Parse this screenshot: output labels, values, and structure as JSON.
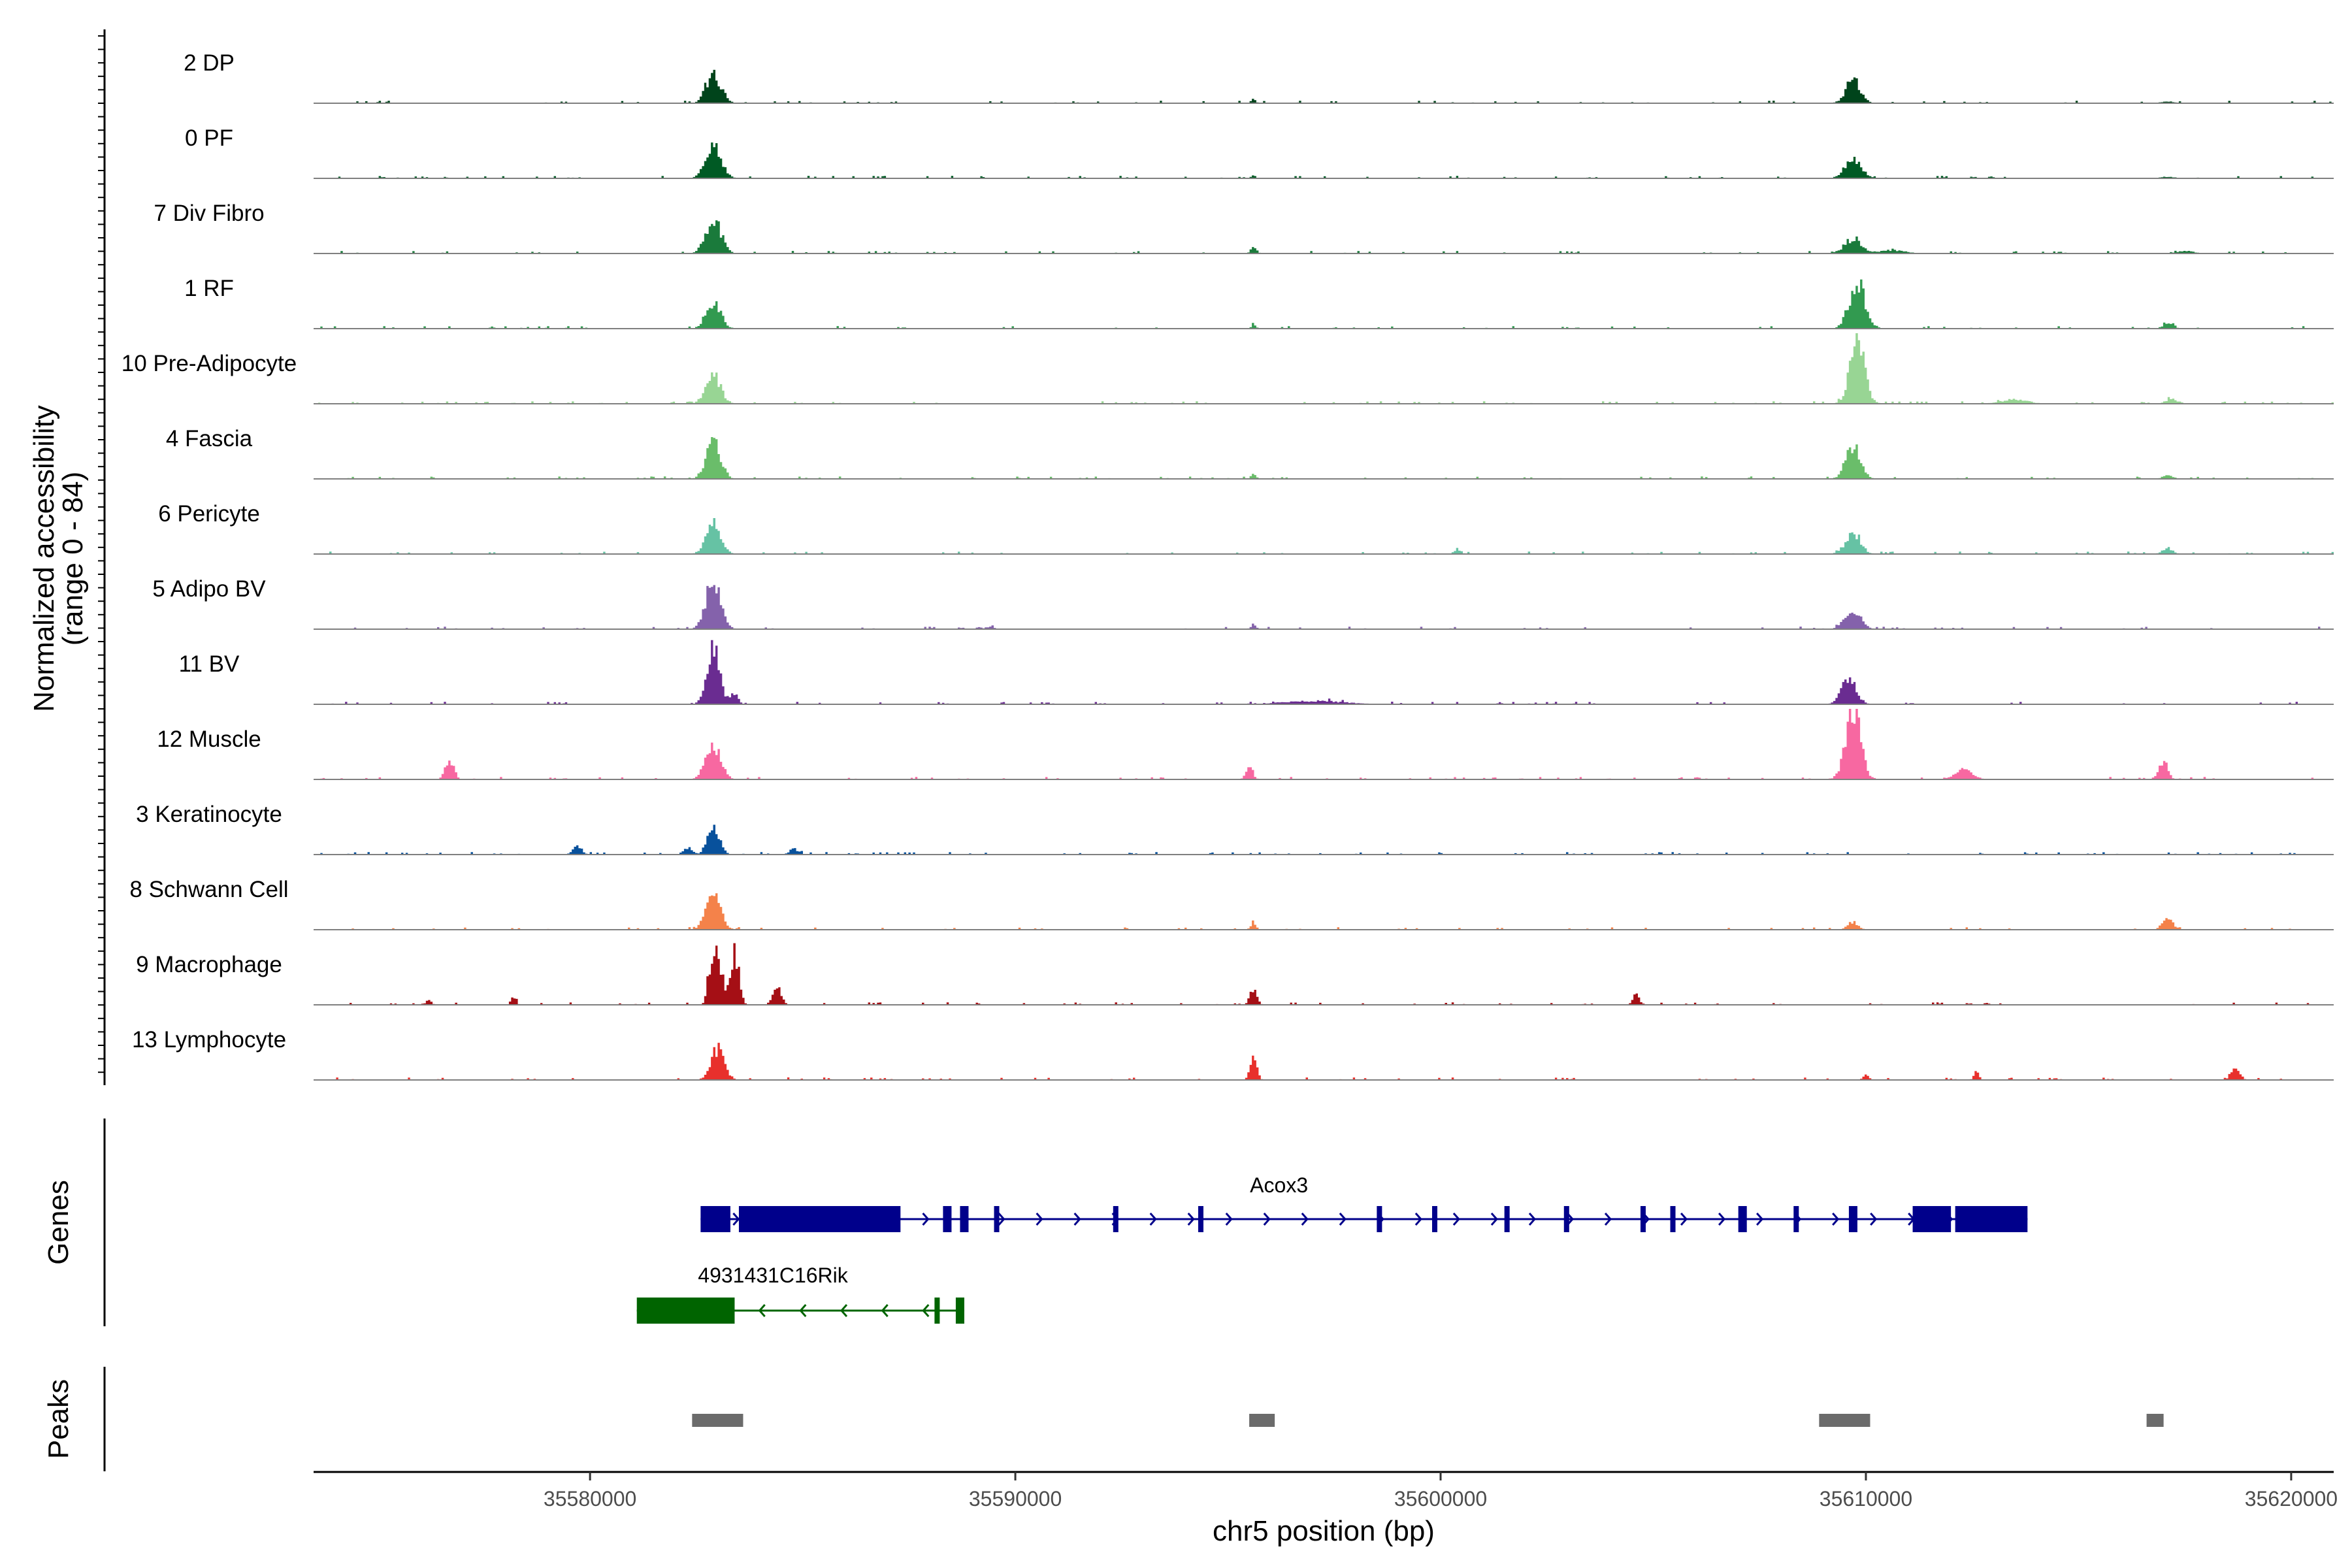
{
  "chart_data": {
    "type": "area",
    "title": "",
    "xlabel": "chr5 position (bp)",
    "ylabel": "Normalized accessibility\n(range 0 - 84)",
    "ylabel_lines": [
      "Normalized accessibility",
      "(range 0 - 84)"
    ],
    "y_range": [
      0,
      84
    ],
    "x_range": [
      35573500,
      35621000
    ],
    "x_ticks": [
      35580000,
      35590000,
      35600000,
      35610000,
      35620000
    ],
    "x_tick_labels": [
      "35580000",
      "35590000",
      "35600000",
      "35610000",
      "35620000"
    ],
    "panel_labels": {
      "genes": "Genes",
      "peaks": "Peaks"
    },
    "series": [
      {
        "name": "2 DP",
        "color": "#00441b",
        "peaks": [
          [
            35582900,
            35,
            170
          ],
          [
            35609700,
            27,
            170
          ],
          [
            35595600,
            4,
            60
          ],
          [
            35617100,
            2,
            150
          ]
        ]
      },
      {
        "name": "0 PF",
        "color": "#005a24",
        "peaks": [
          [
            35582900,
            38,
            180
          ],
          [
            35609700,
            23,
            190
          ],
          [
            35595600,
            3,
            60
          ],
          [
            35617100,
            2,
            150
          ]
        ]
      },
      {
        "name": "7 Div Fibro",
        "color": "#1a7a3b",
        "peaks": [
          [
            35582900,
            40,
            180
          ],
          [
            35609700,
            17,
            200
          ],
          [
            35595600,
            7,
            70
          ],
          [
            35610600,
            4,
            300
          ],
          [
            35617500,
            3,
            200
          ]
        ]
      },
      {
        "name": "1 RF",
        "color": "#329a50",
        "peaks": [
          [
            35582900,
            32,
            170
          ],
          [
            35609800,
            52,
            190
          ],
          [
            35595600,
            4,
            60
          ],
          [
            35617100,
            6,
            120
          ]
        ]
      },
      {
        "name": "10 Pre-Adipocyte",
        "color": "#98d594",
        "peaks": [
          [
            35582900,
            34,
            170
          ],
          [
            35609800,
            75,
            170
          ],
          [
            35613500,
            5,
            300
          ],
          [
            35617200,
            5,
            150
          ]
        ]
      },
      {
        "name": "4 Fascia",
        "color": "#6abd6a",
        "peaks": [
          [
            35582900,
            44,
            170
          ],
          [
            35609700,
            39,
            170
          ],
          [
            35595600,
            5,
            60
          ],
          [
            35617100,
            4,
            120
          ]
        ]
      },
      {
        "name": "6 Pericyte",
        "color": "#66c2a4",
        "peaks": [
          [
            35582900,
            35,
            170
          ],
          [
            35609700,
            26,
            170
          ],
          [
            35600400,
            6,
            80
          ],
          [
            35617100,
            7,
            120
          ]
        ]
      },
      {
        "name": "5 Adipo BV",
        "color": "#8462ab",
        "peaks": [
          [
            35582900,
            60,
            170
          ],
          [
            35609700,
            20,
            190
          ],
          [
            35595600,
            6,
            60
          ],
          [
            35589400,
            3,
            100
          ]
        ]
      },
      {
        "name": "11 BV",
        "color": "#6a2c91",
        "peaks": [
          [
            35582900,
            66,
            150
          ],
          [
            35609600,
            31,
            170
          ],
          [
            35583400,
            13,
            80
          ],
          [
            35597000,
            4,
            700
          ]
        ]
      },
      {
        "name": "12 Muscle",
        "color": "#f768a1",
        "peaks": [
          [
            35582900,
            42,
            170
          ],
          [
            35609700,
            84,
            170
          ],
          [
            35576700,
            22,
            100
          ],
          [
            35595500,
            17,
            80
          ],
          [
            35612300,
            12,
            200
          ],
          [
            35617000,
            22,
            100
          ]
        ]
      },
      {
        "name": "3 Keratinocyte",
        "color": "#08519c",
        "peaks": [
          [
            35582900,
            33,
            140
          ],
          [
            35579700,
            10,
            100
          ],
          [
            35582300,
            8,
            100
          ],
          [
            35584800,
            7,
            100
          ]
        ]
      },
      {
        "name": "8 Schwann Cell",
        "color": "#f4824a",
        "peaks": [
          [
            35582900,
            39,
            170
          ],
          [
            35609700,
            9,
            120
          ],
          [
            35595600,
            9,
            60
          ],
          [
            35617100,
            14,
            120
          ]
        ]
      },
      {
        "name": "9 Macrophage",
        "color": "#a50f15",
        "peaks": [
          [
            35583000,
            58,
            110
          ],
          [
            35583400,
            60,
            100
          ],
          [
            35582800,
            32,
            60
          ],
          [
            35584400,
            20,
            100
          ],
          [
            35595600,
            19,
            80
          ],
          [
            35604600,
            12,
            80
          ],
          [
            35576200,
            6,
            60
          ],
          [
            35578200,
            10,
            60
          ]
        ]
      },
      {
        "name": "13 Lymphocyte",
        "color": "#e8302c",
        "peaks": [
          [
            35583000,
            36,
            160
          ],
          [
            35595600,
            24,
            80
          ],
          [
            35618700,
            14,
            100
          ],
          [
            35612600,
            9,
            60
          ],
          [
            35610000,
            8,
            60
          ]
        ]
      }
    ],
    "genes": [
      {
        "name": "Acox3",
        "strand": "+",
        "color": "#00008b",
        "start": 35582600,
        "end": 35613800,
        "exons": [
          [
            35582600,
            35583300
          ],
          [
            35583500,
            35587300
          ],
          [
            35588300,
            35588500
          ],
          [
            35588700,
            35588900
          ],
          [
            35589500,
            35589600
          ],
          [
            35592300,
            35592400
          ],
          [
            35594300,
            35594400
          ],
          [
            35598500,
            35598600
          ],
          [
            35599800,
            35599900
          ],
          [
            35601500,
            35601600
          ],
          [
            35602900,
            35603000
          ],
          [
            35604700,
            35604800
          ],
          [
            35605400,
            35605500
          ],
          [
            35607000,
            35607200
          ],
          [
            35608300,
            35608400
          ],
          [
            35609600,
            35609800
          ],
          [
            35611100,
            35612000
          ],
          [
            35612100,
            35613800
          ]
        ]
      },
      {
        "name": "4931431C16Rik",
        "strand": "-",
        "color": "#006400",
        "start": 35581100,
        "end": 35588800,
        "exons": [
          [
            35581100,
            35583400
          ],
          [
            35588100,
            35588200
          ],
          [
            35588600,
            35588800
          ]
        ]
      }
    ],
    "peaks": [
      [
        35582400,
        35583600
      ],
      [
        35595500,
        35596100
      ],
      [
        35608900,
        35610100
      ],
      [
        35616600,
        35617000
      ]
    ]
  }
}
